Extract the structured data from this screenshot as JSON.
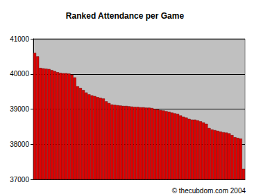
{
  "chart_data": {
    "type": "bar",
    "title": "Ranked Attendance per Game",
    "categories": [
      null,
      null,
      null,
      null,
      null,
      null,
      null,
      null,
      null,
      null,
      null,
      null,
      null,
      null,
      null,
      null,
      null,
      null,
      null,
      null,
      null,
      null,
      null,
      null,
      null,
      null,
      null,
      null,
      null,
      null,
      null,
      null,
      null,
      null,
      null,
      null,
      null,
      null,
      null,
      null,
      null,
      null,
      null,
      null,
      null,
      null,
      null,
      null,
      null,
      null,
      null,
      null,
      null,
      null,
      null,
      null,
      null,
      null,
      null,
      null,
      null,
      null,
      null,
      null,
      null,
      null,
      null,
      null,
      null,
      null,
      null,
      null,
      null,
      null
    ],
    "values": [
      40600,
      40500,
      40170,
      40160,
      40150,
      40140,
      40110,
      40080,
      40050,
      40030,
      40020,
      40020,
      40010,
      39980,
      39900,
      39650,
      39600,
      39540,
      39470,
      39420,
      39390,
      39370,
      39340,
      39320,
      39300,
      39220,
      39170,
      39130,
      39120,
      39110,
      39100,
      39090,
      39090,
      39080,
      39070,
      39060,
      39060,
      39050,
      39050,
      39040,
      39040,
      39030,
      39000,
      38990,
      38970,
      38960,
      38940,
      38920,
      38900,
      38880,
      38860,
      38820,
      38780,
      38760,
      38720,
      38700,
      38700,
      38680,
      38650,
      38620,
      38580,
      38460,
      38420,
      38400,
      38380,
      38360,
      38340,
      38330,
      38310,
      38260,
      38200,
      38180,
      38160,
      37300
    ],
    "color": "#e00000",
    "ylim": [
      37000,
      41000
    ],
    "yticks": [
      37000,
      38000,
      39000,
      40000,
      41000
    ],
    "grid": true,
    "tick_labels": "y",
    "annotation": "© thecubdom.com 2004"
  }
}
